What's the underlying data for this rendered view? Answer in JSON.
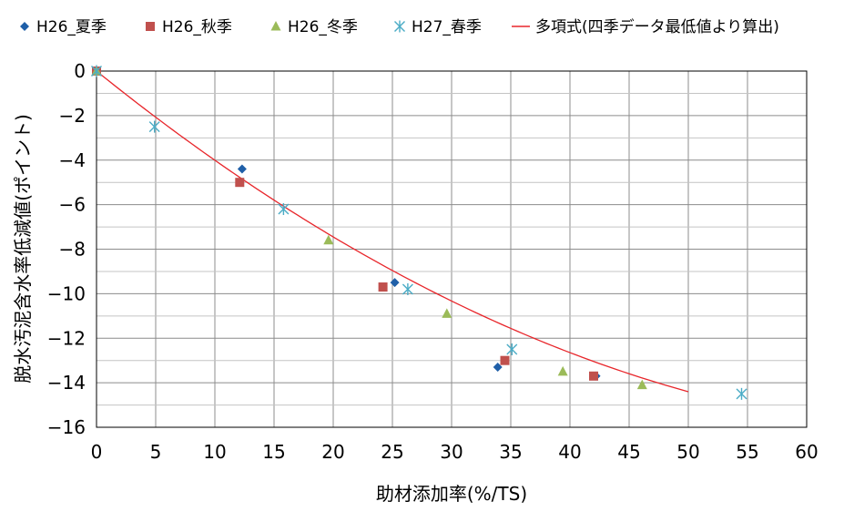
{
  "chart_data": {
    "type": "scatter",
    "xlabel": "助材添加率(%/TS)",
    "ylabel": "脱水汚泥含水率低減値(ポイント)",
    "xlim": [
      0,
      60
    ],
    "ylim": [
      -16,
      0
    ],
    "xticks": [
      0,
      5,
      10,
      15,
      20,
      25,
      30,
      35,
      40,
      45,
      50,
      55,
      60
    ],
    "yticks": [
      0,
      -2,
      -4,
      -6,
      -8,
      -10,
      -12,
      -14,
      -16
    ],
    "grid": true,
    "legend_position": "top",
    "series": [
      {
        "name": "H26_夏季",
        "marker": "diamond",
        "color": "#1f5fa8",
        "points": [
          [
            0,
            0
          ],
          [
            12.3,
            -4.4
          ],
          [
            25.2,
            -9.5
          ],
          [
            33.9,
            -13.3
          ],
          [
            42.2,
            -13.7
          ]
        ]
      },
      {
        "name": "H26_秋季",
        "marker": "square",
        "color": "#c0504d",
        "points": [
          [
            0,
            0
          ],
          [
            12.1,
            -5.0
          ],
          [
            24.2,
            -9.7
          ],
          [
            34.5,
            -13.0
          ],
          [
            42.0,
            -13.7
          ]
        ]
      },
      {
        "name": "H26_冬季",
        "marker": "triangle",
        "color": "#9bbb59",
        "points": [
          [
            0,
            0
          ],
          [
            19.6,
            -7.6
          ],
          [
            29.6,
            -10.9
          ],
          [
            39.4,
            -13.5
          ],
          [
            46.1,
            -14.1
          ]
        ]
      },
      {
        "name": "H27_春季",
        "marker": "asterisk",
        "color": "#4bacc6",
        "points": [
          [
            0,
            0
          ],
          [
            4.9,
            -2.5
          ],
          [
            15.8,
            -6.2
          ],
          [
            26.3,
            -9.8
          ],
          [
            35.1,
            -12.5
          ],
          [
            54.5,
            -14.5
          ]
        ]
      }
    ],
    "trendline": {
      "name": "多項式(四季データ最低値より算出)",
      "color": "#e8262b",
      "x_range": [
        0,
        50
      ],
      "coefficients": {
        "a": 0.002813,
        "b": -0.4287,
        "c": 0
      }
    }
  }
}
